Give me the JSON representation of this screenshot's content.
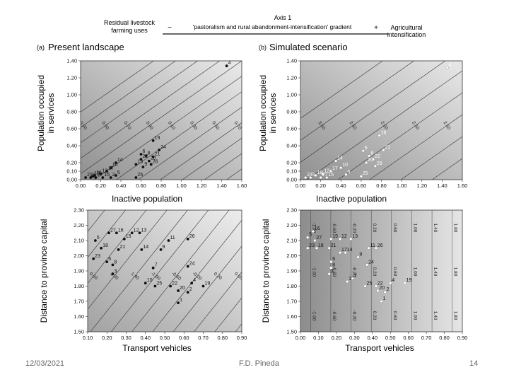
{
  "header": {
    "axis_title": "Axis 1",
    "left_label_line1": "Residual livestock",
    "left_label_line2": "farming uses",
    "minus": "−",
    "gradient_label": "'pastoralism and rural abandonment-intensification' gradient",
    "plus": "+",
    "right_label_line1": "Agricultural",
    "right_label_line2": "intensification"
  },
  "colors": {
    "panel_light": "#e4e4e4",
    "panel_dark": "#9a9a9a",
    "contour": "#333333",
    "point": "#111111",
    "point_light": "#ffffff"
  },
  "chart_data": [
    {
      "type": "scatter",
      "panel": "(a)",
      "title": "Present landscape",
      "xlabel": "Inactive population",
      "ylabel": "Population occupied in services",
      "xlim": [
        0,
        1.6
      ],
      "ylim": [
        0,
        1.4
      ],
      "xticks": [
        "0.00",
        "0.20",
        "0.40",
        "0.60",
        "0.80",
        "1.00",
        "1.20",
        "1.40",
        "1.60"
      ],
      "yticks": [
        "0.00",
        "0.10",
        "0.20",
        "0.40",
        "0.60",
        "0.80",
        "1.00",
        "1.20",
        "1.40"
      ],
      "contours": [
        "0.10",
        "0.30",
        "0.50",
        "0.70",
        "0.90",
        "0.10",
        "0.30",
        "0.50",
        "0.70",
        "0.90",
        "0.10",
        "0.30",
        "0.50",
        "0.70",
        "0.10",
        "0.30"
      ],
      "points": [
        {
          "label": "4",
          "x": 1.45,
          "y": 1.34
        },
        {
          "label": "19",
          "x": 0.72,
          "y": 0.46
        },
        {
          "label": "24",
          "x": 0.78,
          "y": 0.35
        },
        {
          "label": "6",
          "x": 0.6,
          "y": 0.3
        },
        {
          "label": "8",
          "x": 0.65,
          "y": 0.28
        },
        {
          "label": "21",
          "x": 0.72,
          "y": 0.27
        },
        {
          "label": "22",
          "x": 0.6,
          "y": 0.24
        },
        {
          "label": "20",
          "x": 0.68,
          "y": 0.22
        },
        {
          "label": "26",
          "x": 0.7,
          "y": 0.18
        },
        {
          "label": "13",
          "x": 0.55,
          "y": 0.18
        },
        {
          "label": "9",
          "x": 0.62,
          "y": 0.15
        },
        {
          "label": "14",
          "x": 0.35,
          "y": 0.2
        },
        {
          "label": "10",
          "x": 0.3,
          "y": 0.14
        },
        {
          "label": "17",
          "x": 0.26,
          "y": 0.1
        },
        {
          "label": "12",
          "x": 0.2,
          "y": 0.07
        },
        {
          "label": "16",
          "x": 0.14,
          "y": 0.05
        },
        {
          "label": "18",
          "x": 0.12,
          "y": 0.04
        },
        {
          "label": "5",
          "x": 0.35,
          "y": 0.05
        },
        {
          "label": "25",
          "x": 0.55,
          "y": 0.02
        },
        {
          "label": "23",
          "x": 0.05,
          "y": 0.0
        },
        {
          "label": "27",
          "x": 0.15,
          "y": 0.0
        },
        {
          "label": "15",
          "x": 0.22,
          "y": 0.0
        },
        {
          "label": "2",
          "x": 0.3,
          "y": 0.0
        },
        {
          "label": "3",
          "x": 0.1,
          "y": 0.02
        }
      ]
    },
    {
      "type": "scatter",
      "panel": "(b)",
      "title": "Simulated scenario",
      "xlabel": "Inactive population",
      "ylabel": "Population occupied in services",
      "xlim": [
        0,
        1.6
      ],
      "ylim": [
        0,
        1.4
      ],
      "xticks": [
        "0.00",
        "0.20",
        "0.40",
        "0.60",
        "0.80",
        "1.00",
        "1.20",
        "1.40",
        "1.60"
      ],
      "yticks": [
        "0.00",
        "0.10",
        "0.20",
        "0.40",
        "0.60",
        "0.80",
        "1.00",
        "1.20",
        "1.40"
      ],
      "contours": [
        "3.50",
        "3.50",
        "2.50",
        "2.50",
        "2.50",
        "2.50",
        "1.50",
        "1.50",
        "1.50",
        "0.50",
        "0.50"
      ],
      "points": [
        {
          "label": "4",
          "x": 1.45,
          "y": 1.32
        },
        {
          "label": "19",
          "x": 0.78,
          "y": 0.52
        },
        {
          "label": "21",
          "x": 0.82,
          "y": 0.35
        },
        {
          "label": "6",
          "x": 0.62,
          "y": 0.34
        },
        {
          "label": "8",
          "x": 0.68,
          "y": 0.28
        },
        {
          "label": "22",
          "x": 0.72,
          "y": 0.24
        },
        {
          "label": "20",
          "x": 0.65,
          "y": 0.2
        },
        {
          "label": "26",
          "x": 0.74,
          "y": 0.16
        },
        {
          "label": "14",
          "x": 0.35,
          "y": 0.22
        },
        {
          "label": "10",
          "x": 0.4,
          "y": 0.14
        },
        {
          "label": "17",
          "x": 0.3,
          "y": 0.1
        },
        {
          "label": "12",
          "x": 0.22,
          "y": 0.07
        },
        {
          "label": "18",
          "x": 0.15,
          "y": 0.05
        },
        {
          "label": "25",
          "x": 0.6,
          "y": 0.04
        },
        {
          "label": "5",
          "x": 0.45,
          "y": 0.06
        },
        {
          "label": "27",
          "x": 0.2,
          "y": 0.0
        },
        {
          "label": "15",
          "x": 0.26,
          "y": 0.0
        },
        {
          "label": "23",
          "x": 0.05,
          "y": 0.0
        },
        {
          "label": "3",
          "x": 0.1,
          "y": 0.0
        }
      ]
    },
    {
      "type": "scatter",
      "panel": "",
      "title": "",
      "xlabel": "Transport vehicles",
      "ylabel": "Distance to province capital",
      "xlim": [
        0.1,
        0.9
      ],
      "ylim": [
        1.5,
        2.3
      ],
      "xticks": [
        "0.10",
        "0.20",
        "0.30",
        "0.40",
        "0.50",
        "0.60",
        "0.70",
        "0.80",
        "0.90"
      ],
      "yticks": [
        "1.50",
        "1.60",
        "1.70",
        "1.80",
        "1.90",
        "2.00",
        "2.10",
        "2.20",
        "2.30"
      ],
      "contours": [
        "-0.60",
        "-0.20",
        "0.20",
        "0.60",
        "1.00",
        "1.40",
        "-1.00",
        "-0.60",
        "-0.20",
        "0.20",
        "0.60",
        "1.00",
        "-1.00",
        "-0.60",
        "-0.20",
        "0.20",
        "0.60"
      ],
      "points": [
        {
          "label": "27",
          "x": 0.21,
          "y": 2.15
        },
        {
          "label": "16",
          "x": 0.25,
          "y": 2.15
        },
        {
          "label": "13",
          "x": 0.37,
          "y": 2.15
        },
        {
          "label": "12",
          "x": 0.33,
          "y": 2.15
        },
        {
          "label": "5",
          "x": 0.14,
          "y": 2.1
        },
        {
          "label": "15",
          "x": 0.29,
          "y": 2.11
        },
        {
          "label": "26",
          "x": 0.62,
          "y": 2.11
        },
        {
          "label": "11",
          "x": 0.52,
          "y": 2.1
        },
        {
          "label": "18",
          "x": 0.17,
          "y": 2.05
        },
        {
          "label": "21",
          "x": 0.26,
          "y": 2.04
        },
        {
          "label": "14",
          "x": 0.38,
          "y": 2.04
        },
        {
          "label": "9",
          "x": 0.48,
          "y": 2.04
        },
        {
          "label": "23",
          "x": 0.13,
          "y": 1.98
        },
        {
          "label": "6",
          "x": 0.2,
          "y": 1.96
        },
        {
          "label": "24",
          "x": 0.62,
          "y": 1.93
        },
        {
          "label": "8",
          "x": 0.23,
          "y": 1.94
        },
        {
          "label": "7",
          "x": 0.44,
          "y": 1.92
        },
        {
          "label": "3",
          "x": 0.23,
          "y": 1.88
        },
        {
          "label": "10",
          "x": 0.4,
          "y": 1.82
        },
        {
          "label": "25",
          "x": 0.45,
          "y": 1.8
        },
        {
          "label": "22",
          "x": 0.53,
          "y": 1.8
        },
        {
          "label": "4",
          "x": 0.64,
          "y": 1.82
        },
        {
          "label": "19",
          "x": 0.7,
          "y": 1.8
        },
        {
          "label": "20",
          "x": 0.57,
          "y": 1.77
        },
        {
          "label": "2",
          "x": 0.62,
          "y": 1.76
        },
        {
          "label": "1",
          "x": 0.57,
          "y": 1.69
        }
      ]
    },
    {
      "type": "scatter",
      "panel": "",
      "title": "",
      "xlabel": "Transport vehicles",
      "ylabel": "Distance to province capital",
      "xlim": [
        0.0,
        0.9
      ],
      "ylim": [
        1.5,
        2.3
      ],
      "xticks": [
        "0.00",
        "0.10",
        "0.20",
        "0.30",
        "0.40",
        "0.50",
        "0.60",
        "0.70",
        "0.80",
        "0.90"
      ],
      "yticks": [
        "1.50",
        "1.60",
        "1.70",
        "1.80",
        "1.90",
        "2.00",
        "2.10",
        "2.20",
        "2.30"
      ],
      "contours": [
        "-1.00",
        "-0.60",
        "-0.20",
        "0.20",
        "0.60",
        "1.00",
        "1.40",
        "1.80",
        "-1.00",
        "-0.60",
        "-0.20",
        "0.20",
        "0.60",
        "1.00",
        "1.40",
        "1.80",
        "-1.00",
        "-0.60",
        "-0.20",
        "0.20",
        "0.60",
        "1.00",
        "1.40",
        "1.80"
      ],
      "points": [
        {
          "label": "16",
          "x": 0.07,
          "y": 2.16
        },
        {
          "label": "5",
          "x": 0.04,
          "y": 2.12
        },
        {
          "label": "27",
          "x": 0.08,
          "y": 2.1
        },
        {
          "label": "15",
          "x": 0.17,
          "y": 2.11
        },
        {
          "label": "12",
          "x": 0.22,
          "y": 2.11
        },
        {
          "label": "13",
          "x": 0.28,
          "y": 2.11
        },
        {
          "label": "23",
          "x": 0.04,
          "y": 2.05
        },
        {
          "label": "18",
          "x": 0.09,
          "y": 2.05
        },
        {
          "label": "21",
          "x": 0.16,
          "y": 2.05
        },
        {
          "label": "11",
          "x": 0.38,
          "y": 2.05
        },
        {
          "label": "26",
          "x": 0.42,
          "y": 2.05
        },
        {
          "label": "17",
          "x": 0.22,
          "y": 2.02
        },
        {
          "label": "14",
          "x": 0.25,
          "y": 2.02
        },
        {
          "label": "9",
          "x": 0.32,
          "y": 1.99
        },
        {
          "label": "6",
          "x": 0.17,
          "y": 1.96
        },
        {
          "label": "24",
          "x": 0.37,
          "y": 1.94
        },
        {
          "label": "8",
          "x": 0.17,
          "y": 1.92
        },
        {
          "label": "3",
          "x": 0.16,
          "y": 1.88
        },
        {
          "label": "10",
          "x": 0.26,
          "y": 1.83
        },
        {
          "label": "7",
          "x": 0.29,
          "y": 1.85
        },
        {
          "label": "25",
          "x": 0.36,
          "y": 1.8
        },
        {
          "label": "22",
          "x": 0.42,
          "y": 1.8
        },
        {
          "label": "4",
          "x": 0.5,
          "y": 1.82
        },
        {
          "label": "19",
          "x": 0.58,
          "y": 1.82
        },
        {
          "label": "20",
          "x": 0.43,
          "y": 1.77
        },
        {
          "label": "2",
          "x": 0.47,
          "y": 1.76
        },
        {
          "label": "1",
          "x": 0.45,
          "y": 1.7
        }
      ]
    }
  ],
  "footer": {
    "date": "12/03/2021",
    "author": "F.D. Pineda",
    "page": "14"
  }
}
